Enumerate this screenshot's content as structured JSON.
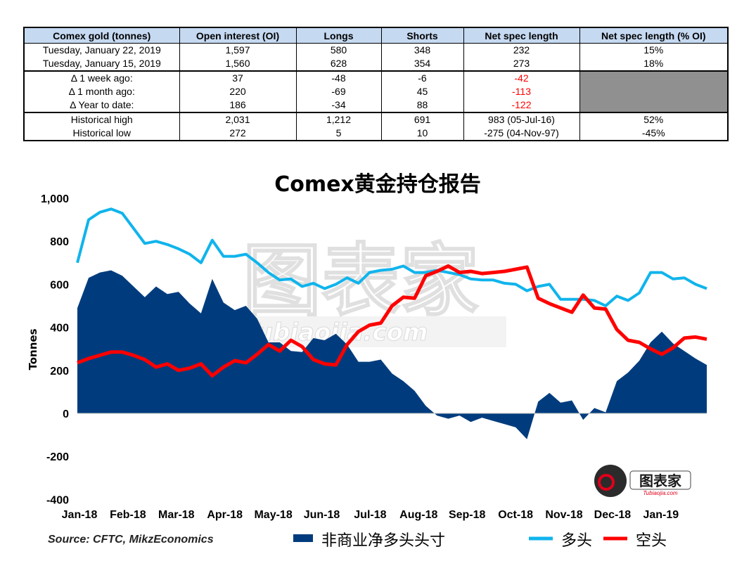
{
  "table": {
    "headers": [
      "Comex gold (tonnes)",
      "Open interest (OI)",
      "Longs",
      "Shorts",
      "Net spec length",
      "Net spec length (% OI)"
    ],
    "groups": [
      [
        [
          "Tuesday, January 22, 2019",
          "1,597",
          "580",
          "348",
          "232",
          "15%"
        ],
        [
          "Tuesday, January 15, 2019",
          "1,560",
          "628",
          "354",
          "273",
          "18%"
        ]
      ],
      [
        [
          "Δ 1 week ago:",
          "37",
          "-48",
          "-6",
          "-42",
          ""
        ],
        [
          "Δ 1 month ago:",
          "220",
          "-69",
          "45",
          "-113",
          ""
        ],
        [
          "Δ Year to date:",
          "186",
          "-34",
          "88",
          "-122",
          ""
        ]
      ],
      [
        [
          "Historical high",
          "2,031",
          "1,212",
          "691",
          "983  (05-Jul-16)",
          "52%"
        ],
        [
          "Historical low",
          "272",
          "5",
          "10",
          "-275  (04-Nov-97)",
          "-45%"
        ]
      ]
    ],
    "negative_color": "#ff0000",
    "header_bg": "#c5d9f1",
    "blank_cell_color": "#909090"
  },
  "chart_data": {
    "type": "area",
    "title": "Comex黄金持仓报告",
    "ylabel": "Tonnes",
    "ylim": [
      -400,
      1000
    ],
    "yticks": [
      -400,
      -200,
      0,
      200,
      400,
      600,
      800,
      1000
    ],
    "ytick_labels": [
      "-400",
      "-200",
      "0",
      "200",
      "400",
      "600",
      "800",
      "1,000"
    ],
    "x_labels": [
      "Jan-18",
      "Feb-18",
      "Mar-18",
      "Apr-18",
      "May-18",
      "Jun-18",
      "Jul-18",
      "Aug-18",
      "Sep-18",
      "Oct-18",
      "Nov-18",
      "Dec-18",
      "Jan-19"
    ],
    "grid": false,
    "legend_position": "bottom",
    "source": "Source: CFTC, MikzEconomics",
    "series": [
      {
        "name": "非商业净多头头寸",
        "style": "area",
        "color": "#003c7d",
        "values": [
          490,
          630,
          655,
          665,
          640,
          590,
          540,
          590,
          555,
          565,
          510,
          465,
          625,
          515,
          480,
          500,
          440,
          330,
          330,
          290,
          285,
          350,
          340,
          370,
          320,
          240,
          240,
          250,
          185,
          150,
          105,
          35,
          -10,
          -25,
          -10,
          -40,
          -20,
          -35,
          -50,
          -65,
          -120,
          55,
          95,
          50,
          60,
          -30,
          25,
          5,
          150,
          190,
          245,
          330,
          380,
          325,
          290,
          255,
          225
        ]
      },
      {
        "name": "多头",
        "style": "line",
        "color": "#10b4ec",
        "values": [
          700,
          900,
          935,
          950,
          930,
          860,
          790,
          800,
          785,
          765,
          740,
          700,
          805,
          730,
          730,
          740,
          700,
          655,
          620,
          625,
          590,
          605,
          580,
          600,
          630,
          605,
          655,
          665,
          670,
          685,
          655,
          655,
          665,
          655,
          645,
          625,
          620,
          620,
          605,
          600,
          570,
          590,
          600,
          530,
          530,
          530,
          525,
          500,
          545,
          525,
          560,
          655,
          655,
          625,
          630,
          600,
          580
        ]
      },
      {
        "name": "空头",
        "style": "line",
        "color": "#ff0000",
        "values": [
          235,
          255,
          270,
          285,
          285,
          270,
          250,
          215,
          230,
          200,
          210,
          230,
          175,
          215,
          245,
          235,
          275,
          320,
          290,
          340,
          310,
          250,
          230,
          225,
          320,
          380,
          410,
          420,
          500,
          540,
          535,
          640,
          660,
          685,
          655,
          660,
          650,
          655,
          660,
          670,
          680,
          535,
          510,
          490,
          470,
          550,
          490,
          485,
          390,
          340,
          330,
          300,
          275,
          305,
          350,
          355,
          345
        ]
      }
    ]
  },
  "watermark": {
    "text_cn": "图表家",
    "text_en": "Tubiaojia.com",
    "logo_text": "图表家",
    "logo_sub": "Tubiaojia.com"
  }
}
